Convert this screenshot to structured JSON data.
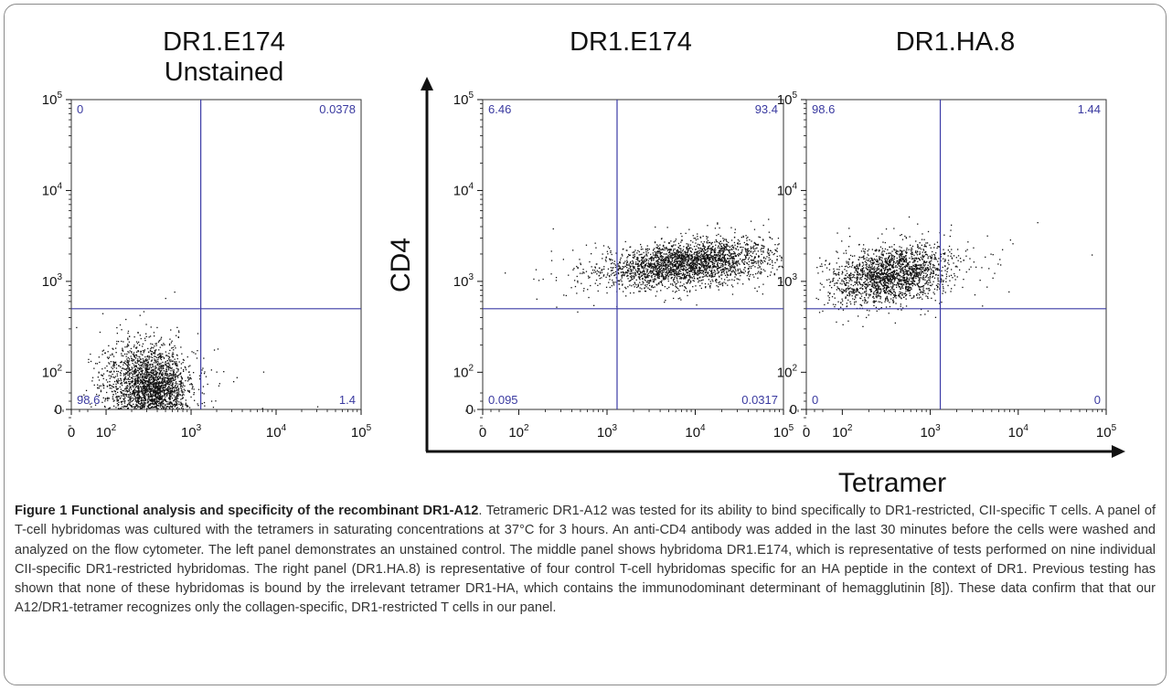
{
  "chart_data": [
    {
      "type": "scatter",
      "title": "DR1.E174",
      "subtitle": "Unstained",
      "xscale": "biexponential",
      "yscale": "biexponential",
      "xticks": [
        "0",
        "10^2",
        "10^3",
        "10^4",
        "10^5"
      ],
      "yticks": [
        "0",
        "10^2",
        "10^3",
        "10^4",
        "10^5"
      ],
      "gate": {
        "x": 1300,
        "y": 500
      },
      "quadrants": {
        "upper_left": "0",
        "upper_right": "0.0378",
        "lower_left": "98.6",
        "lower_right": "1.4"
      },
      "population": {
        "center": [
          320,
          60
        ],
        "description": "dense cluster near origin"
      }
    },
    {
      "type": "scatter",
      "title": "DR1.E174",
      "xscale": "biexponential",
      "yscale": "biexponential",
      "xticks": [
        "0",
        "10^2",
        "10^3",
        "10^4",
        "10^5"
      ],
      "yticks": [
        "0",
        "10^2",
        "10^3",
        "10^4",
        "10^5"
      ],
      "gate": {
        "x": 1300,
        "y": 500
      },
      "quadrants": {
        "upper_left": "6.46",
        "upper_right": "93.4",
        "lower_left": "0.095",
        "lower_right": "0.0317"
      },
      "population": {
        "center": [
          8000,
          1600
        ],
        "description": "tetramer-positive CD4+ cluster"
      }
    },
    {
      "type": "scatter",
      "title": "DR1.HA.8",
      "xscale": "biexponential",
      "yscale": "biexponential",
      "xticks": [
        "0",
        "10^2",
        "10^3",
        "10^4",
        "10^5"
      ],
      "yticks": [
        "0",
        "10^2",
        "10^3",
        "10^4",
        "10^5"
      ],
      "gate": {
        "x": 1300,
        "y": 500
      },
      "quadrants": {
        "upper_left": "98.6",
        "upper_right": "1.44",
        "lower_left": "0",
        "lower_right": "0"
      },
      "population": {
        "center": [
          350,
          1200
        ],
        "description": "tetramer-negative CD4+ cluster"
      }
    }
  ],
  "axes": {
    "ylabel": "CD4",
    "xlabel": "Tetramer"
  },
  "caption": {
    "title": "Figure 1 Functional analysis and specificity of the recombinant DR1-A12",
    "body": ". Tetrameric DR1-A12 was tested for its ability to bind specifically to DR1-restricted, CII-specific T cells. A panel of T-cell hybridomas was cultured with the tetramers in saturating concentrations at 37°C for 3 hours. An anti-CD4 antibody was added in the last 30 minutes before the cells were washed and analyzed on the flow cytometer. The left panel demonstrates an unstained control. The middle panel shows hybridoma DR1.E174, which is representative of tests performed on nine individual CII-specific DR1-restricted hybridomas. The right panel (DR1.HA.8) is representative of four control T-cell hybridomas specific for an HA peptide in the context of DR1. Previous testing has shown that none of these hybridomas is bound by the irrelevant tetramer DR1-HA, which contains the immunodominant determinant of hemagglutinin [8]). These data confirm that that our A12/DR1-tetramer recognizes only the collagen-specific, DR1-restricted T cells in our panel."
  },
  "colors": {
    "gate": "#3b3ba6",
    "quadrant_label": "#3a3aa0",
    "dots": "#111111",
    "frame": "#8a8a8a"
  }
}
